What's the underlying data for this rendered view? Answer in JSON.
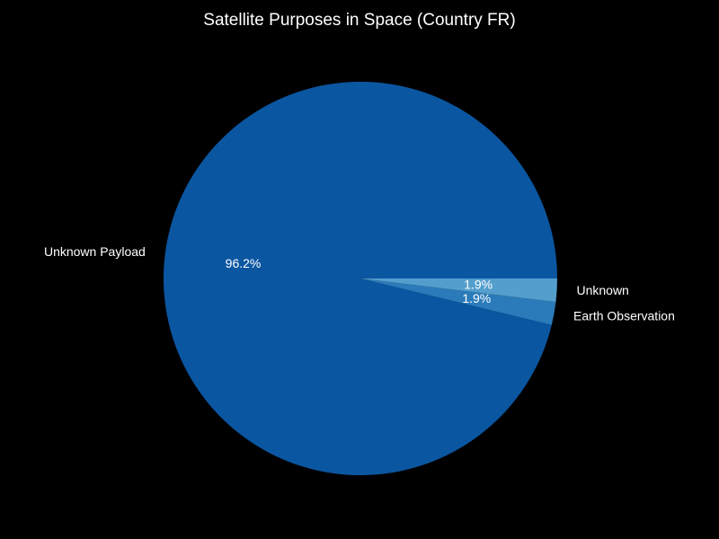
{
  "chart_data": {
    "type": "pie",
    "title": "Satellite Purposes in Space (Country FR)",
    "slices": [
      {
        "label": "Unknown Payload",
        "value": 96.2,
        "pct_label": "96.2%",
        "color": "#0b56a1"
      },
      {
        "label": "Earth Observation",
        "value": 1.9,
        "pct_label": "1.9%",
        "color": "#2b7bba"
      },
      {
        "label": "Unknown",
        "value": 1.9,
        "pct_label": "1.9%",
        "color": "#539ecd"
      }
    ],
    "start_angle_deg": 0,
    "direction": "counterclockwise",
    "background": "#000000",
    "text_color": "#ffffff"
  }
}
